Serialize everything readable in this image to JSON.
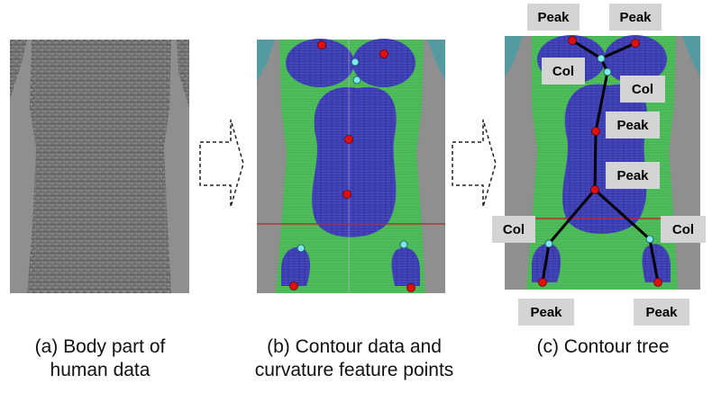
{
  "panels": [
    {
      "id": "a",
      "caption": "(a) Body part of\nhuman data"
    },
    {
      "id": "b",
      "caption": "(b) Contour data and\ncurvature feature points"
    },
    {
      "id": "c",
      "caption": "(c) Contour tree"
    }
  ],
  "tree_labels": [
    "Peak",
    "Peak",
    "Col",
    "Col",
    "Peak",
    "Peak",
    "Col",
    "Col",
    "Peak",
    "Peak"
  ],
  "colors": {
    "background": "#ffffff",
    "gray_panel": "#8f8f8f",
    "body_texture": "#6b6b6b",
    "contour_green": "#4fbf5a",
    "contour_blue": "#3a3ab0",
    "peak_point": "#e01010",
    "col_point": "#7fe6f0",
    "tree_edge": "#000000",
    "label_box": "#d4d4d4",
    "axis_red": "#c02020"
  }
}
